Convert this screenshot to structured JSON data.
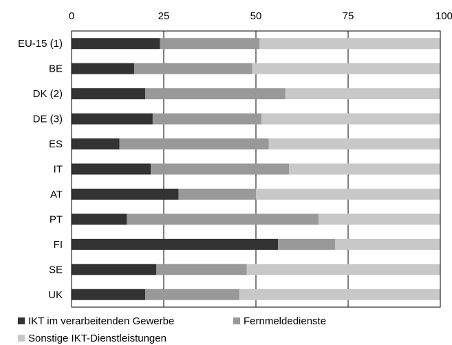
{
  "chart_data": {
    "type": "bar",
    "orientation": "horizontal",
    "stacked": true,
    "categories": [
      "EU-15 (1)",
      "BE",
      "DK (2)",
      "DE (3)",
      "ES",
      "IT",
      "AT",
      "PT",
      "FI",
      "SE",
      "UK"
    ],
    "series": [
      {
        "name": "IKT im verarbeitenden Gewerbe",
        "color": "#333333",
        "values": [
          24,
          17,
          20,
          22,
          13,
          21.5,
          29,
          15,
          56,
          23,
          20
        ]
      },
      {
        "name": "Fernmeldedienste",
        "color": "#999999",
        "values": [
          27,
          32,
          38,
          29.5,
          40.5,
          37.5,
          21,
          52,
          15.5,
          24.5,
          25.5
        ]
      },
      {
        "name": "Sonstige IKT-Dienstleistungen",
        "color": "#c8c8c8",
        "values": [
          49,
          51,
          42,
          48.5,
          46.5,
          41,
          50,
          33,
          28.5,
          52.5,
          54.5
        ]
      }
    ],
    "xlim": [
      0,
      100
    ],
    "xticks": [
      0,
      25,
      50,
      75,
      100
    ],
    "x_axis_position": "top",
    "grid": "vertical",
    "legend_position": "bottom"
  }
}
